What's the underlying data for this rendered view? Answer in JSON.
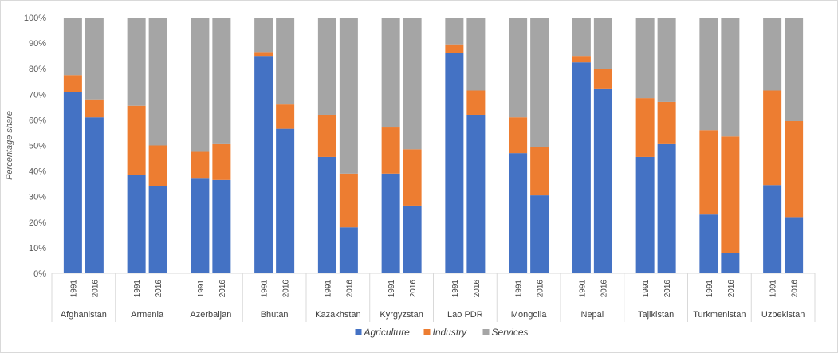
{
  "chart_data": {
    "type": "bar",
    "stacked": true,
    "ylabel": "Percentage share",
    "ylim": [
      0,
      100
    ],
    "yticks": [
      "0%",
      "10%",
      "20%",
      "30%",
      "40%",
      "50%",
      "60%",
      "70%",
      "80%",
      "90%",
      "100%"
    ],
    "legend_position": "bottom",
    "categories": [
      "Afghanistan",
      "Armenia",
      "Azerbaijan",
      "Bhutan",
      "Kazakhstan",
      "Kyrgyzstan",
      "Lao PDR",
      "Mongolia",
      "Nepal",
      "Tajikistan",
      "Turkmenistan",
      "Uzbekistan"
    ],
    "years": [
      "1991",
      "2016"
    ],
    "series": [
      {
        "name": "Agriculture",
        "color": "#4472C4",
        "values": [
          [
            71,
            61
          ],
          [
            38.5,
            34
          ],
          [
            37,
            36.5
          ],
          [
            85,
            56.5
          ],
          [
            45.5,
            18
          ],
          [
            39,
            26.5
          ],
          [
            86,
            62
          ],
          [
            47,
            30.5
          ],
          [
            82.5,
            72
          ],
          [
            45.5,
            50.5
          ],
          [
            23,
            8
          ],
          [
            34.5,
            22
          ]
        ]
      },
      {
        "name": "Industry",
        "color": "#ED7D31",
        "values": [
          [
            6.5,
            7
          ],
          [
            27,
            16
          ],
          [
            10.5,
            14
          ],
          [
            1.5,
            9.5
          ],
          [
            16.5,
            21
          ],
          [
            18,
            22
          ],
          [
            3.5,
            9.5
          ],
          [
            14,
            19
          ],
          [
            2.5,
            8
          ],
          [
            23,
            16.5
          ],
          [
            33,
            45.5
          ],
          [
            37,
            37.5
          ]
        ]
      },
      {
        "name": "Services",
        "color": "#A5A5A5",
        "values": [
          [
            22.5,
            32
          ],
          [
            34.5,
            50
          ],
          [
            52.5,
            49.5
          ],
          [
            13.5,
            34
          ],
          [
            38,
            61
          ],
          [
            43,
            51.5
          ],
          [
            10.5,
            28.5
          ],
          [
            39,
            50.5
          ],
          [
            15,
            20
          ],
          [
            31.5,
            33
          ],
          [
            44,
            46.5
          ],
          [
            28.5,
            40.5
          ]
        ]
      }
    ]
  }
}
